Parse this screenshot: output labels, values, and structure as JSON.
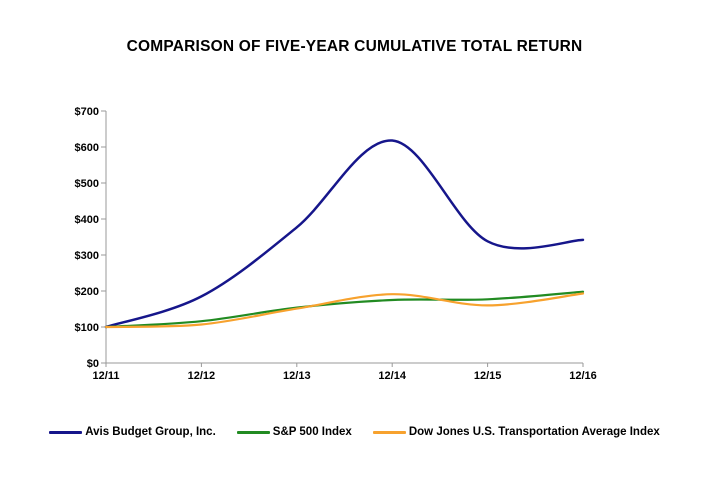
{
  "chart_data": {
    "type": "line",
    "title": "COMPARISON OF FIVE-YEAR CUMULATIVE TOTAL RETURN",
    "x_labels": [
      "12/11",
      "12/12",
      "12/13",
      "12/14",
      "12/15",
      "12/16"
    ],
    "y_ticks": [
      "$0",
      "$100",
      "$200",
      "$300",
      "$400",
      "$500",
      "$600",
      "$700"
    ],
    "y_tick_step": 100,
    "ylim": [
      0,
      700
    ],
    "grid": false,
    "smooth_lines": true,
    "legend_position": "bottom",
    "axis_color": "#999999",
    "series": [
      {
        "name": "Avis Budget Group, Inc.",
        "color": "#16168B",
        "values": [
          100,
          185,
          377,
          618,
          338,
          342
        ]
      },
      {
        "name": "S&P 500 Index",
        "color": "#228B22",
        "values": [
          100,
          116,
          154,
          175,
          177,
          198
        ]
      },
      {
        "name": "Dow Jones U.S. Transportation Average Index",
        "color": "#F7A22E",
        "values": [
          100,
          107,
          151,
          191,
          160,
          193
        ]
      }
    ]
  }
}
